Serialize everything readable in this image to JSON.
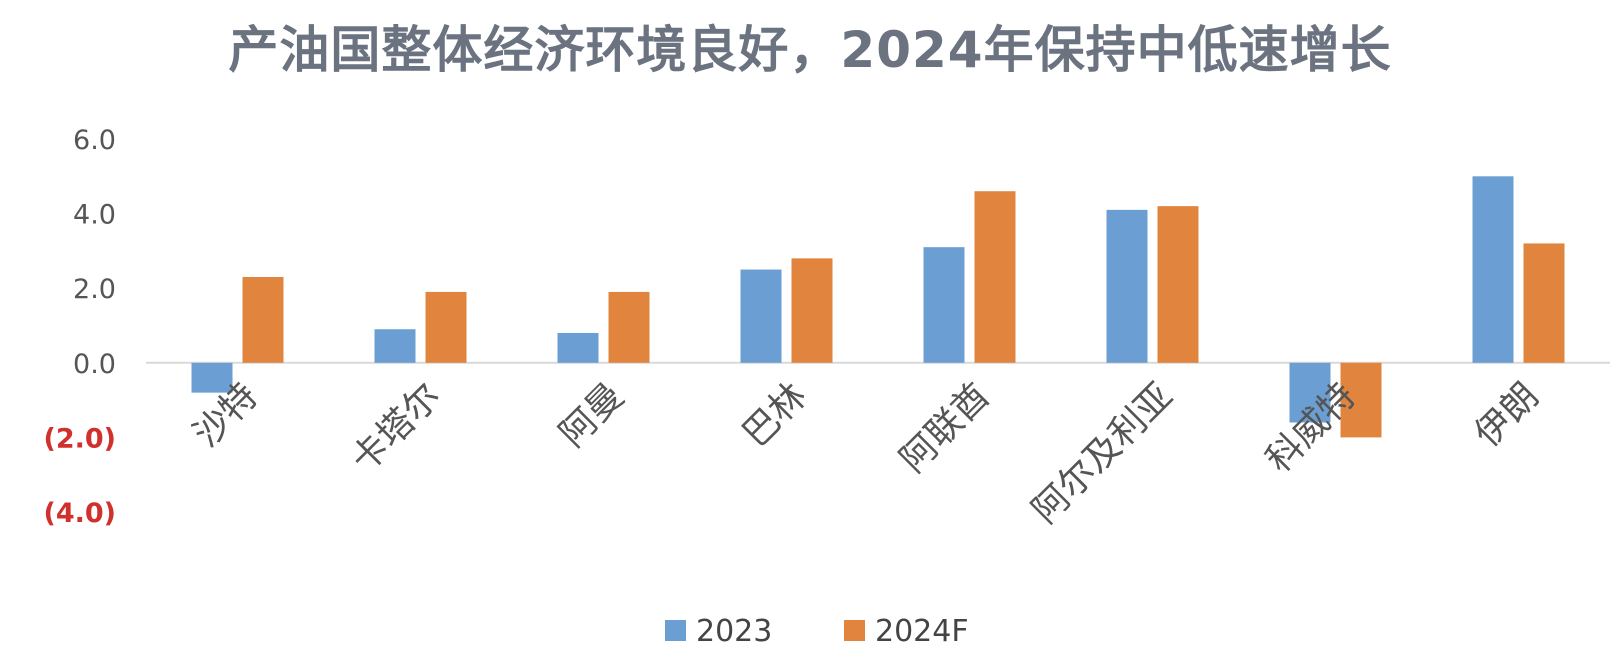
{
  "chart_data": {
    "type": "bar",
    "title": "产油国整体经济环境良好，2024年保持中低速增长",
    "xlabel": "",
    "ylabel": "",
    "categories": [
      "沙特",
      "卡塔尔",
      "阿曼",
      "巴林",
      "阿联酋",
      "阿尔及利亚",
      "科威特",
      "伊朗"
    ],
    "series": [
      {
        "name": "2023",
        "values": [
          -0.8,
          0.9,
          0.8,
          2.5,
          3.1,
          4.1,
          -1.6,
          5.0
        ],
        "color": "#6b9fd3"
      },
      {
        "name": "2024F",
        "values": [
          2.3,
          1.9,
          1.9,
          2.8,
          4.6,
          4.2,
          -2.0,
          3.2
        ],
        "color": "#e0843e"
      }
    ],
    "ylim": [
      -4.0,
      6.0
    ],
    "yticks": [
      {
        "value": 6.0,
        "label": "6.0",
        "color": "#555555"
      },
      {
        "value": 4.0,
        "label": "4.0",
        "color": "#555555"
      },
      {
        "value": 2.0,
        "label": "2.0",
        "color": "#555555"
      },
      {
        "value": 0.0,
        "label": "0.0",
        "color": "#555555"
      },
      {
        "value": -2.0,
        "label": "(2.0)",
        "color": "#d0312d"
      },
      {
        "value": -4.0,
        "label": "(4.0)",
        "color": "#d0312d"
      }
    ],
    "grid": false,
    "legend_position": "bottom"
  }
}
